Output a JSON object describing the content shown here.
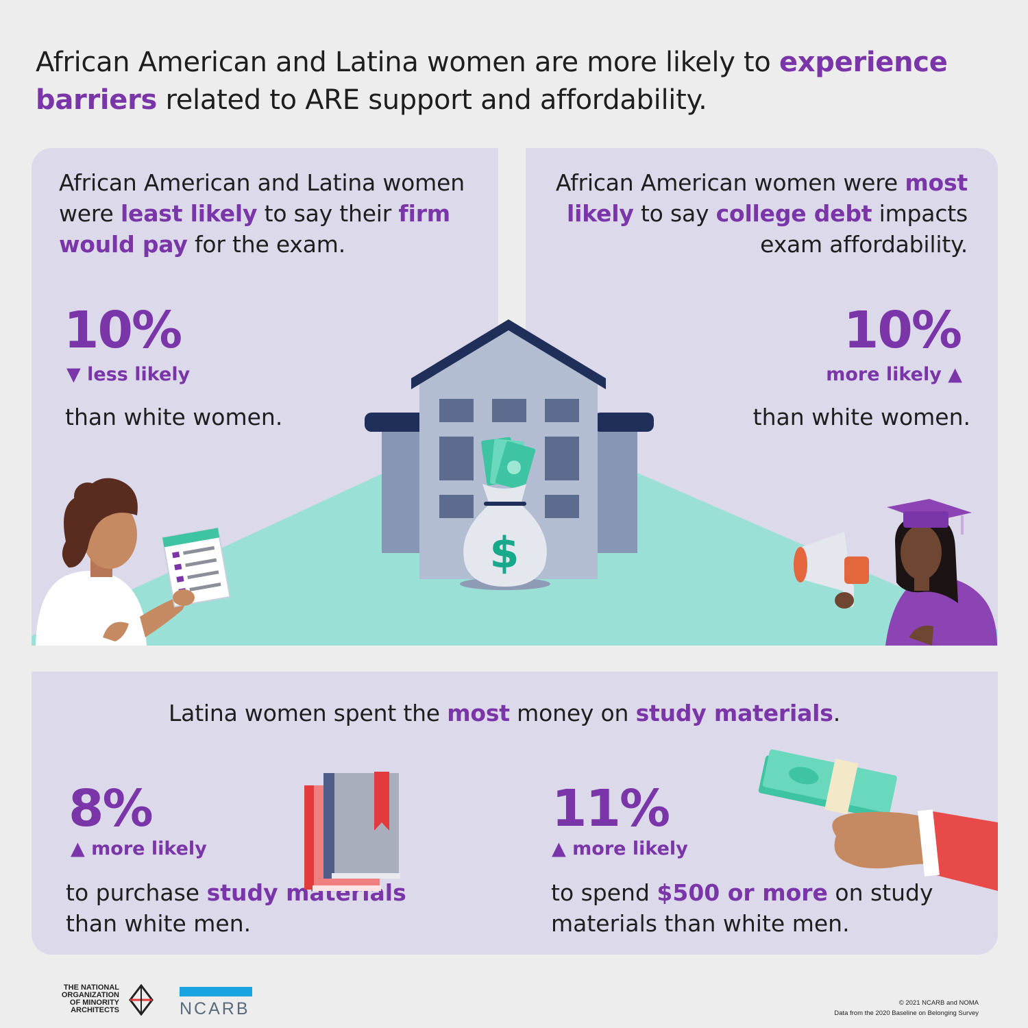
{
  "headline": {
    "part1": "African American and Latina women are more likely to ",
    "highlight1": "experience barriers",
    "part2": " related to ARE support and affordability."
  },
  "left_stat": {
    "statement": {
      "part1": "African American and Latina women were ",
      "highlight1": "least likely",
      "part2": " to say their ",
      "highlight2": "firm would pay",
      "part3": " for the exam."
    },
    "percent": "10%",
    "arrow": "▼",
    "direction": "less likely",
    "comparison": "than white women."
  },
  "right_stat": {
    "statement": {
      "part1": "African American women were ",
      "highlight1": "most likely",
      "part2": " to say ",
      "highlight2": "college debt",
      "part3": " impacts exam affordability."
    },
    "percent": "10%",
    "arrow": "▲",
    "direction": "more likely",
    "comparison": "than white women."
  },
  "bottom": {
    "statement": {
      "part1": "Latina women spent the ",
      "highlight1": "most",
      "part2": " money on ",
      "highlight2": "study materials",
      "part3": "."
    },
    "stat1": {
      "percent": "8%",
      "arrow": "▲",
      "direction": "more likely",
      "desc_part1": "to purchase ",
      "desc_highlight": "study materials",
      "desc_part2": " than white men."
    },
    "stat2": {
      "percent": "11%",
      "arrow": "▲",
      "direction": "more likely",
      "desc_part1": "to spend ",
      "desc_highlight": "$500 or more",
      "desc_part2": " on study materials than white men."
    }
  },
  "illustration": {
    "money_symbol": "$"
  },
  "footer": {
    "noma_lines": [
      "the National",
      "Organization",
      "of Minority",
      "Architects"
    ],
    "ncarb": "NCARB",
    "copyright": "© 2021 NCARB and NOMA",
    "source": "Data from the 2020 Baseline on Belonging Survey"
  },
  "colors": {
    "accent": "#7a35a8",
    "panel": "#dcd9ea",
    "background": "#ededed",
    "floor": "#9be0d6",
    "building": "#b3bdd2",
    "roof": "#1f2f5a",
    "ncarb_blue": "#1aa3e1"
  }
}
